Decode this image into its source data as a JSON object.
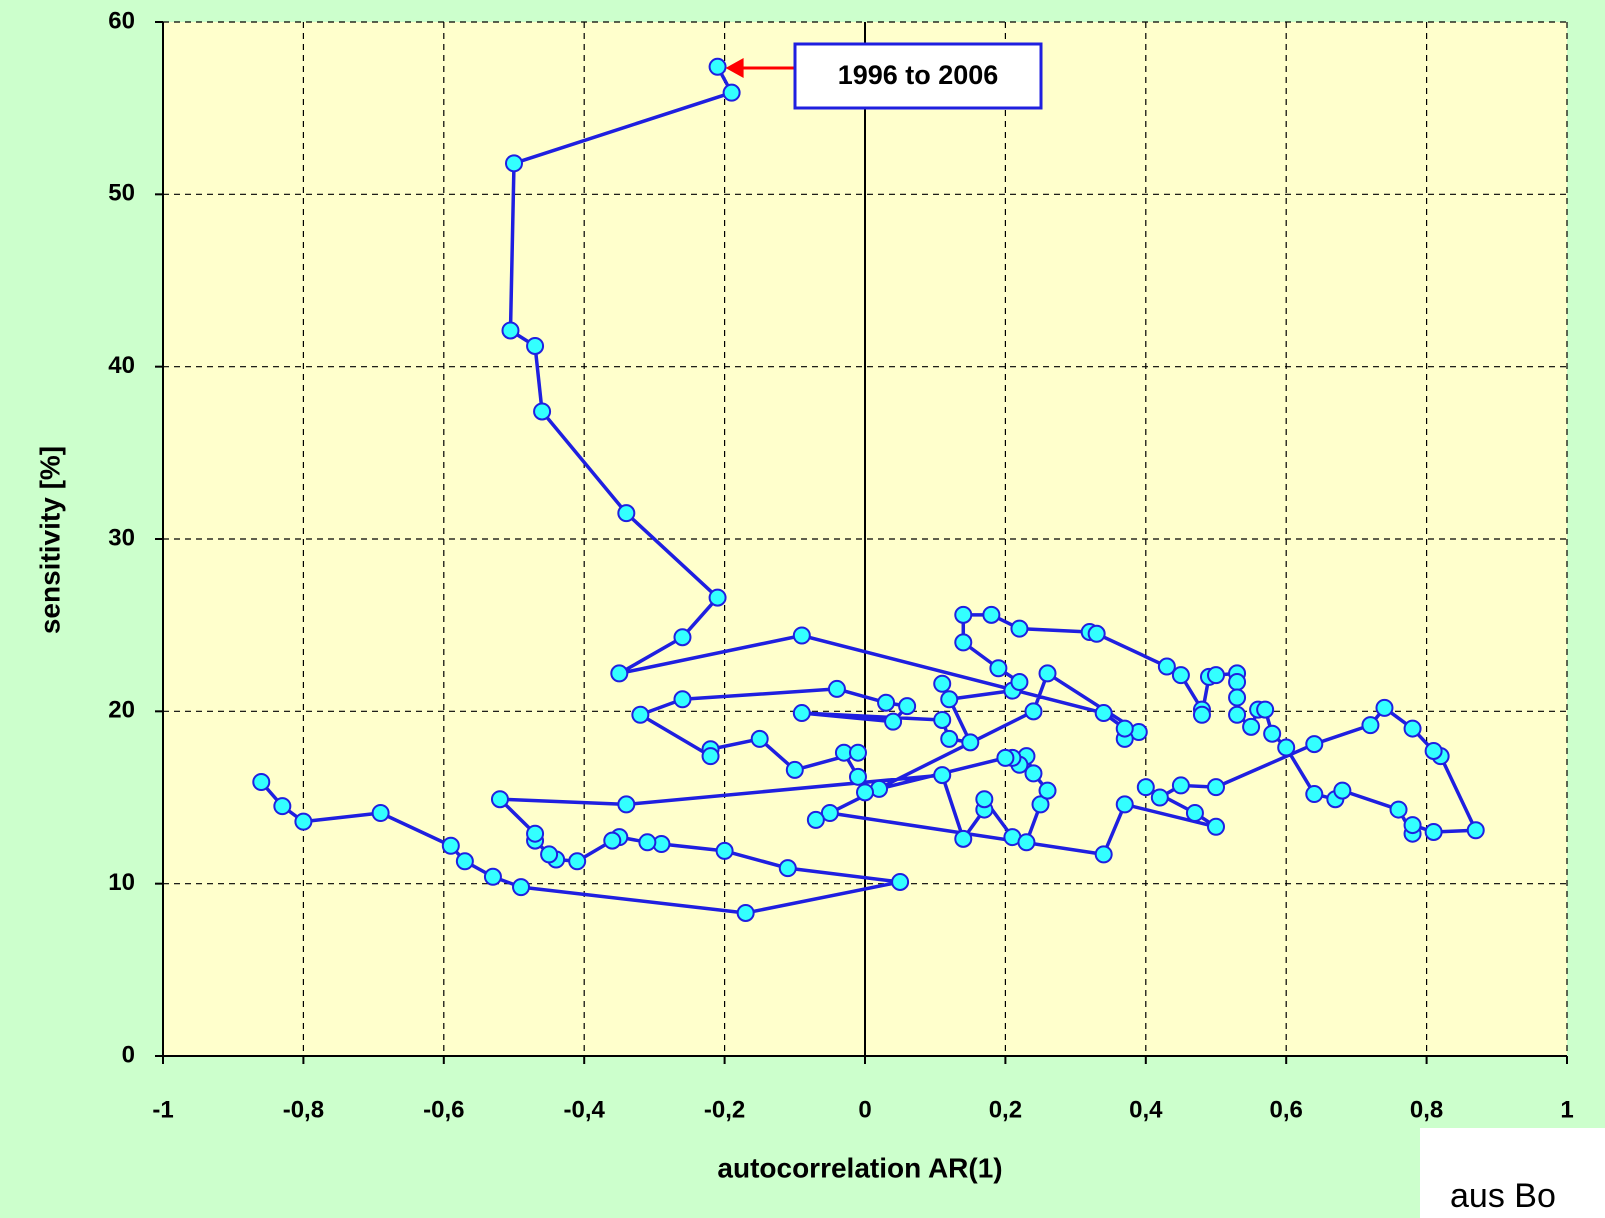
{
  "chart_data": {
    "type": "line",
    "x_label": "autocorrelation AR(1)",
    "y_label": "sensitivity [%]",
    "annotation": "1996 to 2006",
    "source": "aus Bo",
    "line_color": "#1f1fe0",
    "marker_color": "#33ffff",
    "grid": true,
    "xlim": [
      -1,
      1
    ],
    "ylim": [
      0,
      60
    ],
    "xticks": [
      -1,
      {
        "value": -0.8,
        "label": "-0,8"
      },
      {
        "value": -0.6,
        "label": "-0,6"
      },
      {
        "value": -0.4,
        "label": "-0,4"
      },
      {
        "value": -0.2,
        "label": "-0,2"
      },
      0,
      {
        "value": 0.2,
        "label": "0,2"
      },
      {
        "value": 0.4,
        "label": "0,4"
      },
      {
        "value": 0.6,
        "label": "0,6"
      },
      {
        "value": 0.8,
        "label": "0,8"
      },
      1
    ],
    "yticks": [
      0,
      10,
      20,
      30,
      40,
      50,
      60
    ],
    "x": [
      -0.86,
      -0.83,
      -0.8,
      -0.69,
      -0.59,
      -0.57,
      -0.53,
      -0.49,
      -0.17,
      0.05,
      -0.11,
      -0.2,
      -0.29,
      -0.31,
      -0.35,
      -0.36,
      -0.41,
      -0.44,
      -0.45,
      -0.47,
      -0.47,
      -0.52,
      -0.34,
      0.11,
      0.14,
      0.17,
      0.17,
      0.21,
      0.23,
      0.25,
      0.26,
      0.24,
      0.23,
      0.22,
      0.21,
      0.2,
      0.02,
      0.0,
      -0.01,
      -0.03,
      -0.01,
      -0.1,
      -0.15,
      -0.22,
      -0.22,
      -0.32,
      -0.26,
      -0.04,
      0.03,
      0.06,
      0.04,
      -0.09,
      0.11,
      0.12,
      0.15,
      0.11,
      0.12,
      0.21,
      0.22,
      0.19,
      0.14,
      0.14,
      0.18,
      0.22,
      0.32,
      0.33,
      0.43,
      0.45,
      0.48,
      0.48,
      0.49,
      0.5,
      0.53,
      0.53,
      0.53,
      0.53,
      0.55,
      0.56,
      0.57,
      0.58,
      0.6,
      0.64,
      0.67,
      0.68,
      0.76,
      0.78,
      0.78,
      0.81,
      0.87,
      0.82,
      0.81,
      0.78,
      0.74,
      0.72,
      0.64,
      0.5,
      0.45,
      0.42,
      0.4,
      0.47,
      0.5,
      0.37,
      0.34,
      -0.05,
      -0.07,
      0.24,
      0.26,
      0.39,
      0.37,
      0.37,
      0.34,
      -0.09,
      -0.35,
      -0.26,
      -0.21,
      -0.34,
      -0.46,
      -0.47,
      -0.505,
      -0.5,
      -0.19,
      -0.21
    ],
    "values": [
      15.9,
      14.5,
      13.6,
      14.1,
      12.2,
      11.3,
      10.4,
      9.8,
      8.3,
      10.1,
      10.9,
      11.9,
      12.3,
      12.4,
      12.7,
      12.5,
      11.3,
      11.4,
      11.7,
      12.5,
      12.9,
      14.9,
      14.6,
      16.3,
      12.6,
      14.3,
      14.9,
      12.7,
      12.4,
      14.6,
      15.4,
      16.4,
      17.4,
      16.9,
      17.3,
      17.3,
      15.5,
      15.3,
      16.2,
      17.6,
      17.6,
      16.6,
      18.4,
      17.8,
      17.4,
      19.8,
      20.7,
      21.3,
      20.5,
      20.3,
      19.4,
      19.9,
      19.5,
      18.4,
      18.2,
      21.6,
      20.7,
      21.2,
      21.7,
      22.5,
      24.0,
      25.6,
      25.6,
      24.8,
      24.6,
      24.5,
      22.6,
      22.1,
      20.1,
      19.8,
      22.0,
      22.1,
      22.2,
      21.7,
      20.8,
      19.8,
      19.1,
      20.1,
      20.1,
      18.7,
      17.9,
      15.2,
      14.9,
      15.4,
      14.3,
      12.9,
      13.4,
      13.0,
      13.1,
      17.4,
      17.7,
      19.0,
      20.2,
      19.2,
      18.1,
      15.6,
      15.7,
      15.0,
      15.6,
      14.1,
      13.3,
      14.6,
      11.7,
      14.1,
      13.7,
      20.0,
      22.2,
      18.8,
      18.4,
      19.0,
      19.9,
      24.4,
      22.2,
      24.3,
      26.6,
      31.5,
      37.4,
      41.2,
      42.1,
      51.8,
      55.9,
      57.4
    ]
  }
}
